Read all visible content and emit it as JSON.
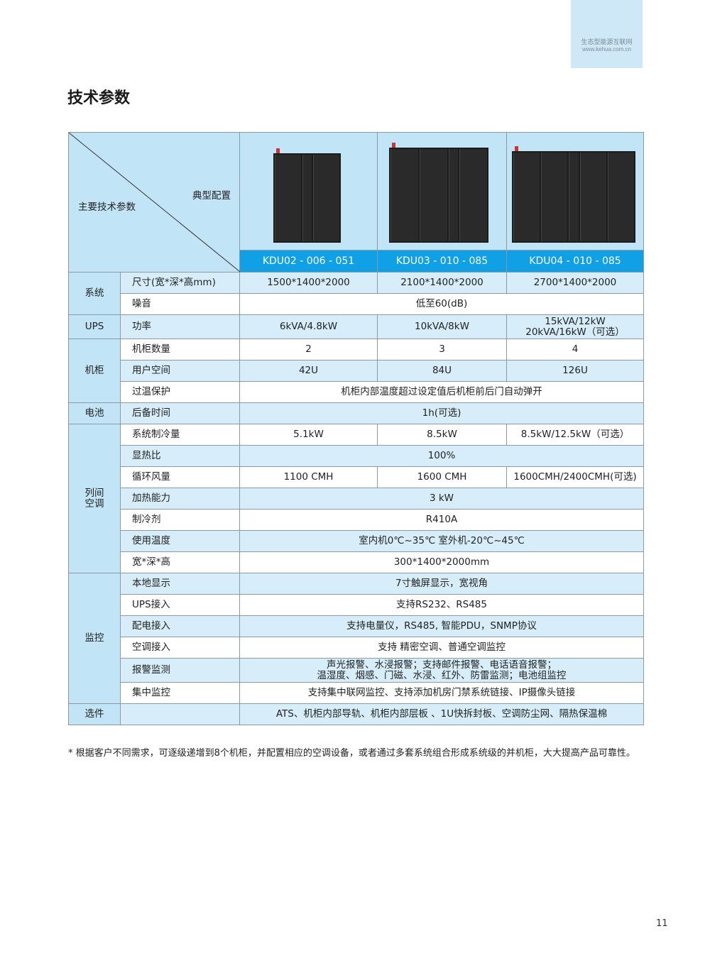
{
  "corner_tab": {
    "slogan": "生态型能源互联网",
    "url": "www.kehua.com.cn"
  },
  "page_title": "技术参数",
  "table": {
    "corner_left": "主要技术参数",
    "corner_right": "典型配置",
    "models": [
      "KDU02 - 006 - 051",
      "KDU03 - 010 - 085",
      "KDU04 - 010 - 085"
    ],
    "groups": [
      {
        "category": "系统",
        "rows": [
          {
            "param": "尺寸(宽*深*高mm)",
            "values": [
              "1500*1400*2000",
              "2100*1400*2000",
              "2700*1400*2000"
            ]
          },
          {
            "param": "噪音",
            "values": [
              "低至60(dB)"
            ]
          }
        ]
      },
      {
        "category": "UPS",
        "rows": [
          {
            "param": "功率",
            "values": [
              "6kVA/4.8kW",
              "10kVA/8kW",
              "15kVA/12kW\n20kVA/16kW（可选）"
            ]
          }
        ]
      },
      {
        "category": "机柜",
        "rows": [
          {
            "param": "机柜数量",
            "values": [
              "2",
              "3",
              "4"
            ]
          },
          {
            "param": "用户空间",
            "values": [
              "42U",
              "84U",
              "126U"
            ]
          },
          {
            "param": "过温保护",
            "values": [
              "机柜内部温度超过设定值后机柜前后门自动弹开"
            ]
          }
        ]
      },
      {
        "category": "电池",
        "rows": [
          {
            "param": "后备时间",
            "values": [
              "1h(可选)"
            ]
          }
        ]
      },
      {
        "category": "列间\n空调",
        "rows": [
          {
            "param": "系统制冷量",
            "values": [
              "5.1kW",
              "8.5kW",
              "8.5kW/12.5kW（可选）"
            ]
          },
          {
            "param": "显热比",
            "values": [
              "100%"
            ]
          },
          {
            "param": "循环风量",
            "values": [
              "1100 CMH",
              "1600 CMH",
              "1600CMH/2400CMH(可选)"
            ]
          },
          {
            "param": "加热能力",
            "values": [
              "3 kW"
            ]
          },
          {
            "param": "制冷剂",
            "values": [
              "R410A"
            ]
          },
          {
            "param": "使用温度",
            "values": [
              "室内机0℃~35℃   室外机-20℃~45℃"
            ]
          },
          {
            "param": "宽*深*高",
            "values": [
              "300*1400*2000mm"
            ]
          }
        ]
      },
      {
        "category": "监控",
        "rows": [
          {
            "param": "本地显示",
            "values": [
              "7寸触屏显示，宽视角"
            ]
          },
          {
            "param": "UPS接入",
            "values": [
              "支持RS232、RS485"
            ]
          },
          {
            "param": "配电接入",
            "values": [
              "支持电量仪，RS485, 智能PDU，SNMP协议"
            ]
          },
          {
            "param": "空调接入",
            "values": [
              "支持 精密空调、普通空调监控"
            ]
          },
          {
            "param": "报警监测",
            "values": [
              "声光报警、水浸报警；支持邮件报警、电话语音报警；\n温湿度、烟感、门磁、水浸、红外、防雷监测；电池组监控"
            ]
          },
          {
            "param": "集中监控",
            "values": [
              "支持集中联网监控、支持添加机房门禁系统链接、IP摄像头链接"
            ]
          }
        ]
      },
      {
        "category": "选件",
        "rows": [
          {
            "param": "",
            "values": [
              "ATS、机柜内部导轨、机柜内部层板 、1U快拆封板、空调防尘网、隔热保温棉"
            ]
          }
        ]
      }
    ]
  },
  "footnote": "* 根据客户不同需求，可逐级递增到8个机柜，并配置相应的空调设备，或者通过多套系统组合形成系统级的并机柜，大大提高产品可靠性。",
  "page_number": "11",
  "colors": {
    "accent": "#0fa0e6",
    "light_blue": "#c2e4f7",
    "row_shade": "#d7eefa"
  }
}
